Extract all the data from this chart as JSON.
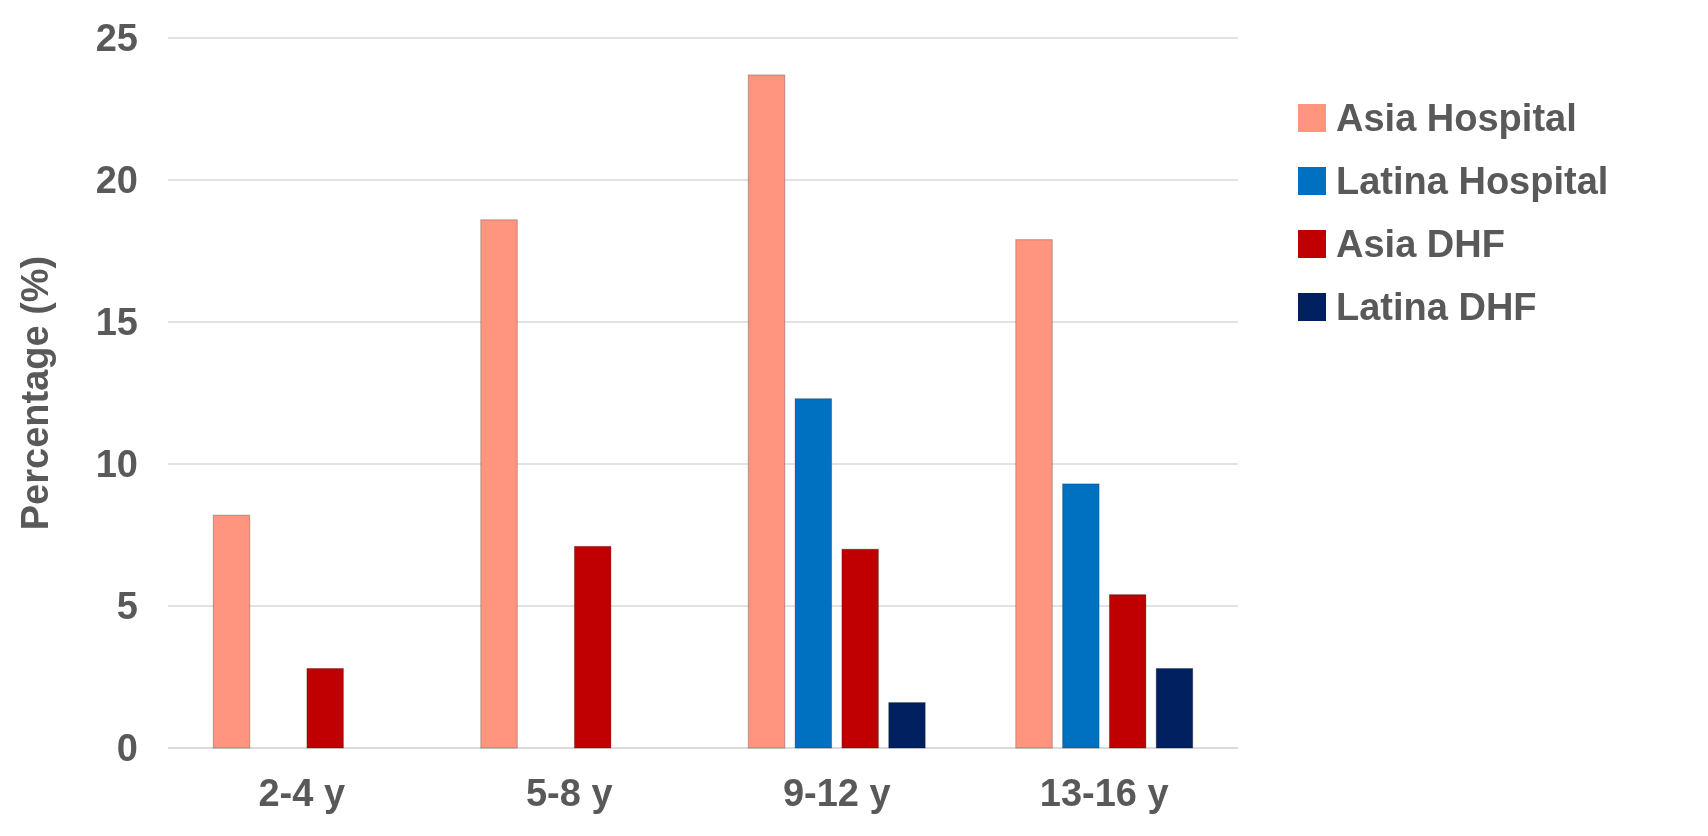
{
  "chart_data": {
    "type": "bar",
    "ylabel": "Percentage (%)",
    "categories": [
      "2-4 y",
      "5-8 y",
      "9-12 y",
      "13-16 y"
    ],
    "series": [
      {
        "name": "Asia Hospital",
        "color": "#ff957e",
        "values": [
          8.2,
          18.6,
          23.7,
          17.9
        ]
      },
      {
        "name": "Latina Hospital",
        "color": "#0070c0",
        "values": [
          null,
          null,
          12.3,
          9.3
        ]
      },
      {
        "name": "Asia DHF",
        "color": "#c00000",
        "values": [
          2.8,
          7.1,
          7.0,
          5.4
        ]
      },
      {
        "name": "Latina DHF",
        "color": "#002060",
        "values": [
          null,
          null,
          1.6,
          2.8
        ]
      }
    ],
    "ylim": [
      0,
      25
    ],
    "yticks": [
      0,
      5,
      10,
      15,
      20,
      25
    ],
    "grid": "y",
    "legend": "right"
  }
}
